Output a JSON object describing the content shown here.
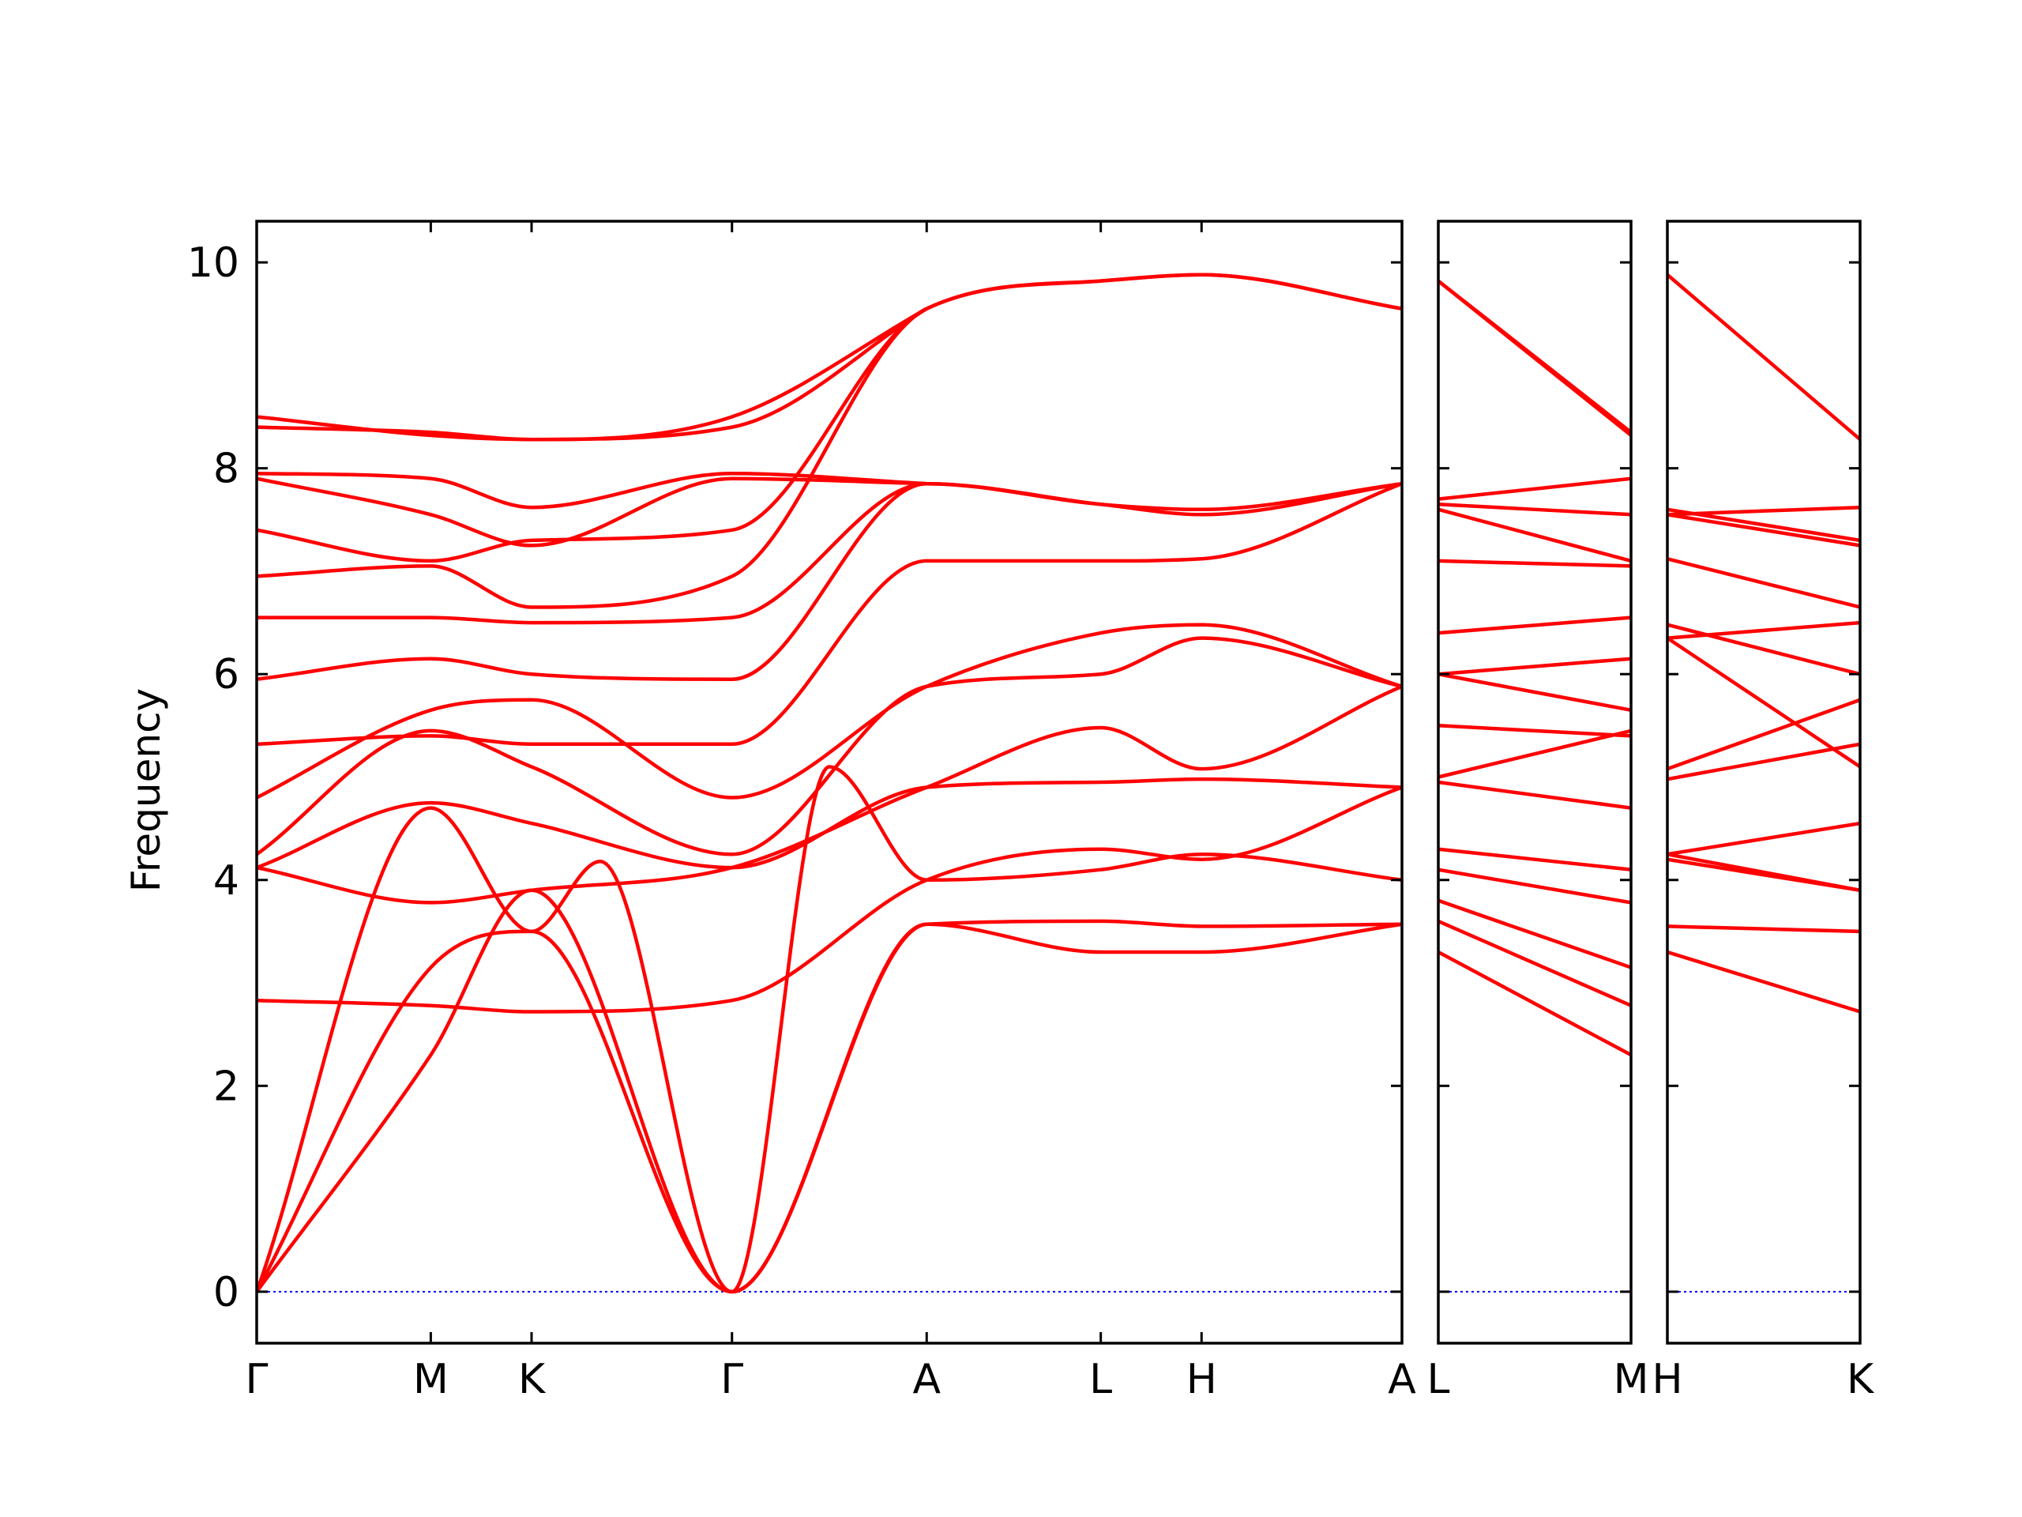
{
  "chart_data": {
    "type": "line",
    "title": "",
    "xlabel": "",
    "ylabel": "Frequency",
    "ylim": [
      -0.5,
      10.4
    ],
    "yticks": [
      0,
      2,
      4,
      6,
      8,
      10
    ],
    "grid": false,
    "colors": {
      "bands": "#ff0000",
      "zero_line": "#0000ff",
      "axes": "#000000"
    },
    "panels": [
      {
        "x_range": [
          0,
          10.0
        ],
        "ticks": [
          {
            "x": 0.0,
            "label": "Γ"
          },
          {
            "x": 1.52,
            "label": "M"
          },
          {
            "x": 2.4,
            "label": "K"
          },
          {
            "x": 4.15,
            "label": "Γ"
          },
          {
            "x": 5.85,
            "label": "A"
          },
          {
            "x": 7.37,
            "label": "L"
          },
          {
            "x": 8.25,
            "label": "H"
          },
          {
            "x": 10.0,
            "label": "A"
          }
        ],
        "series": [
          {
            "x": [
              0,
              1.52,
              2.4,
              4.15,
              5.85,
              7.37,
              8.25,
              10.0
            ],
            "y": [
              0,
              2.3,
              3.9,
              0,
              3.57,
              3.3,
              3.3,
              3.57
            ]
          },
          {
            "x": [
              0,
              1.52,
              2.4,
              4.15,
              5.85,
              7.37,
              8.25,
              10.0
            ],
            "y": [
              0,
              3.15,
              3.5,
              0,
              3.57,
              3.6,
              3.55,
              3.57
            ]
          },
          {
            "x": [
              0,
              1.52,
              2.4,
              3.0,
              4.15,
              5.0,
              5.85,
              7.37,
              8.25,
              10.0
            ],
            "y": [
              0,
              4.7,
              3.5,
              4.18,
              0,
              5.1,
              4.0,
              4.1,
              4.25,
              4.0
            ]
          },
          {
            "x": [
              0,
              1.52,
              2.4,
              4.15,
              5.85,
              7.37,
              8.25,
              10.0
            ],
            "y": [
              2.83,
              2.78,
              2.72,
              2.83,
              4.0,
              4.3,
              4.2,
              4.9
            ]
          },
          {
            "x": [
              0,
              1.52,
              2.4,
              4.15,
              5.85,
              7.37,
              8.25,
              10.0
            ],
            "y": [
              4.12,
              4.75,
              4.55,
              4.12,
              4.9,
              4.95,
              4.98,
              4.9
            ]
          },
          {
            "x": [
              0,
              1.52,
              2.4,
              4.15,
              5.85,
              7.37,
              8.25,
              10.0
            ],
            "y": [
              4.12,
              3.78,
              3.9,
              4.12,
              4.9,
              5.48,
              5.08,
              5.88
            ]
          },
          {
            "x": [
              0,
              1.52,
              2.4,
              4.15,
              5.85,
              7.37,
              8.25,
              10.0
            ],
            "y": [
              4.25,
              5.45,
              5.1,
              4.25,
              5.88,
              6.0,
              6.35,
              5.88
            ]
          },
          {
            "x": [
              0,
              1.52,
              2.4,
              4.15,
              5.85,
              7.37,
              8.25,
              10.0
            ],
            "y": [
              4.8,
              5.65,
              5.75,
              4.8,
              5.88,
              6.4,
              6.48,
              5.88
            ]
          },
          {
            "x": [
              0,
              1.52,
              2.4,
              4.15,
              5.85,
              7.37,
              8.25,
              10.0
            ],
            "y": [
              5.32,
              5.4,
              5.32,
              5.32,
              7.1,
              7.1,
              7.12,
              7.85
            ]
          },
          {
            "x": [
              0,
              1.52,
              2.4,
              4.15,
              5.85,
              7.37,
              8.25,
              10.0
            ],
            "y": [
              5.95,
              6.15,
              6.0,
              5.95,
              7.85,
              7.65,
              7.55,
              7.85
            ]
          },
          {
            "x": [
              0,
              1.52,
              2.4,
              4.15,
              5.85,
              7.37,
              8.25,
              10.0
            ],
            "y": [
              6.55,
              6.55,
              6.5,
              6.55,
              7.85,
              7.65,
              7.6,
              7.85
            ]
          },
          {
            "x": [
              0,
              1.52,
              2.4,
              4.15,
              5.85,
              7.37,
              8.25,
              10.0
            ],
            "y": [
              6.95,
              7.05,
              6.65,
              6.95,
              9.55,
              9.82,
              9.88,
              9.55
            ]
          },
          {
            "x": [
              0,
              1.52,
              2.4,
              4.15,
              5.85,
              7.37,
              8.25,
              10.0
            ],
            "y": [
              7.4,
              7.1,
              7.3,
              7.4,
              9.55,
              9.82,
              9.88,
              9.55
            ]
          },
          {
            "x": [
              0,
              1.52,
              2.4,
              4.15,
              5.85
            ],
            "y": [
              7.9,
              7.55,
              7.25,
              7.9,
              7.85
            ]
          },
          {
            "x": [
              0,
              1.52,
              2.4,
              4.15,
              5.85
            ],
            "y": [
              7.95,
              7.9,
              7.62,
              7.95,
              7.85
            ]
          },
          {
            "x": [
              0,
              1.52,
              2.4,
              4.15,
              5.85
            ],
            "y": [
              8.4,
              8.35,
              8.28,
              8.4,
              9.55
            ]
          },
          {
            "x": [
              0,
              1.52,
              2.4,
              4.15,
              5.85
            ],
            "y": [
              8.5,
              8.32,
              8.28,
              8.5,
              9.55
            ]
          }
        ]
      },
      {
        "x_range": [
          0,
          1.0
        ],
        "ticks": [
          {
            "x": 0.0,
            "label": "L"
          },
          {
            "x": 1.0,
            "label": "M"
          }
        ],
        "series": [
          {
            "x": [
              0,
              1
            ],
            "y": [
              3.3,
              2.3
            ]
          },
          {
            "x": [
              0,
              1
            ],
            "y": [
              3.6,
              2.78
            ]
          },
          {
            "x": [
              0,
              1
            ],
            "y": [
              3.8,
              3.15
            ]
          },
          {
            "x": [
              0,
              1
            ],
            "y": [
              4.1,
              3.78
            ]
          },
          {
            "x": [
              0,
              1
            ],
            "y": [
              4.3,
              4.1
            ]
          },
          {
            "x": [
              0,
              1
            ],
            "y": [
              4.95,
              4.7
            ]
          },
          {
            "x": [
              0,
              1
            ],
            "y": [
              5.0,
              5.45
            ]
          },
          {
            "x": [
              0,
              1
            ],
            "y": [
              5.5,
              5.4
            ]
          },
          {
            "x": [
              0,
              1
            ],
            "y": [
              6.0,
              5.65
            ]
          },
          {
            "x": [
              0,
              1
            ],
            "y": [
              6.0,
              6.15
            ]
          },
          {
            "x": [
              0,
              1
            ],
            "y": [
              6.4,
              6.55
            ]
          },
          {
            "x": [
              0,
              1
            ],
            "y": [
              7.1,
              7.05
            ]
          },
          {
            "x": [
              0,
              1
            ],
            "y": [
              7.6,
              7.1
            ]
          },
          {
            "x": [
              0,
              1
            ],
            "y": [
              7.65,
              7.55
            ]
          },
          {
            "x": [
              0,
              1
            ],
            "y": [
              7.7,
              7.9
            ]
          },
          {
            "x": [
              0,
              1
            ],
            "y": [
              9.82,
              8.35
            ]
          },
          {
            "x": [
              0,
              1
            ],
            "y": [
              9.82,
              8.32
            ]
          }
        ]
      },
      {
        "x_range": [
          0,
          1.0
        ],
        "ticks": [
          {
            "x": 0.0,
            "label": "H"
          },
          {
            "x": 1.0,
            "label": "K"
          }
        ],
        "series": [
          {
            "x": [
              0,
              1
            ],
            "y": [
              3.3,
              2.72
            ]
          },
          {
            "x": [
              0,
              1
            ],
            "y": [
              3.55,
              3.5
            ]
          },
          {
            "x": [
              0,
              1
            ],
            "y": [
              4.2,
              3.9
            ]
          },
          {
            "x": [
              0,
              1
            ],
            "y": [
              4.25,
              3.9
            ]
          },
          {
            "x": [
              0,
              1
            ],
            "y": [
              4.25,
              4.55
            ]
          },
          {
            "x": [
              0,
              1
            ],
            "y": [
              4.98,
              5.32
            ]
          },
          {
            "x": [
              0,
              1
            ],
            "y": [
              5.08,
              5.75
            ]
          },
          {
            "x": [
              0,
              1
            ],
            "y": [
              6.35,
              5.1
            ]
          },
          {
            "x": [
              0,
              1
            ],
            "y": [
              6.48,
              6.0
            ]
          },
          {
            "x": [
              0,
              1
            ],
            "y": [
              6.35,
              6.5
            ]
          },
          {
            "x": [
              0,
              1
            ],
            "y": [
              7.12,
              6.65
            ]
          },
          {
            "x": [
              0,
              1
            ],
            "y": [
              7.55,
              7.25
            ]
          },
          {
            "x": [
              0,
              1
            ],
            "y": [
              7.6,
              7.3
            ]
          },
          {
            "x": [
              0,
              1
            ],
            "y": [
              7.55,
              7.62
            ]
          },
          {
            "x": [
              0,
              1
            ],
            "y": [
              9.88,
              8.28
            ]
          }
        ]
      }
    ]
  }
}
